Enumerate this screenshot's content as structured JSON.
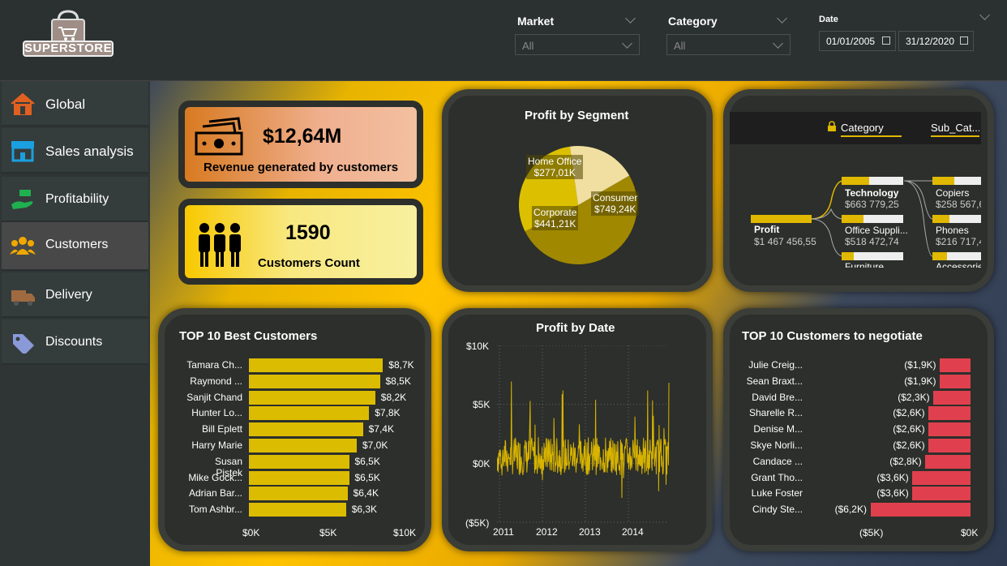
{
  "brand": {
    "logo_text": "SUPERSTORE",
    "accent": "#e1b800",
    "negative": "#e0404e"
  },
  "filters": {
    "market": {
      "label": "Market",
      "value": "All"
    },
    "category": {
      "label": "Category",
      "value": "All"
    },
    "date": {
      "label": "Date",
      "start": "01/01/2005",
      "end": "31/12/2020"
    }
  },
  "sidebar": {
    "items": [
      {
        "label": "Global",
        "icon": "home-icon"
      },
      {
        "label": "Sales analysis",
        "icon": "store-icon"
      },
      {
        "label": "Profitability",
        "icon": "money-hand-icon"
      },
      {
        "label": "Customers",
        "icon": "people-icon"
      },
      {
        "label": "Delivery",
        "icon": "truck-icon"
      },
      {
        "label": "Discounts",
        "icon": "tag-icon"
      }
    ]
  },
  "kpis": {
    "revenue": {
      "value": "$12,64M",
      "label": "Revenue generated by customers",
      "icon": "cash-icon"
    },
    "customers": {
      "value": "1590",
      "label": "Customers Count",
      "icon": "group-icon"
    }
  },
  "segment_chart": {
    "title": "Profit by Segment",
    "slices": [
      {
        "name": "Consumer",
        "value": 749.24,
        "label": "$749,24K",
        "color": "#a08800"
      },
      {
        "name": "Corporate",
        "value": 441.21,
        "label": "$441,21K",
        "color": "#dcc000"
      },
      {
        "name": "Home Office",
        "value": 277.01,
        "label": "$277,01K",
        "color": "#f0dfa0"
      }
    ]
  },
  "tree": {
    "header_category": "Category",
    "header_sub": "Sub_Cat...",
    "root": {
      "name": "Profit",
      "value": "$1 467 456,55"
    },
    "categories": [
      {
        "name": "Technology",
        "value": "$663 779,25",
        "fill": 0.45
      },
      {
        "name": "Office Suppli...",
        "value": "$518 472,74",
        "fill": 0.35
      },
      {
        "name": "Furniture",
        "value": "",
        "fill": 0.2
      }
    ],
    "subcategories": [
      {
        "name": "Copiers",
        "value": "$258 567,6",
        "fill": 0.45
      },
      {
        "name": "Phones",
        "value": "$216 717,4",
        "fill": 0.35
      },
      {
        "name": "Accessorie",
        "value": "",
        "fill": 0.3
      }
    ]
  },
  "best_customers": {
    "title": "TOP 10 Best Customers",
    "axis": [
      "$0K",
      "$5K",
      "$10K"
    ],
    "rows": [
      {
        "name": "Tamara Ch...",
        "value": 8.7,
        "label": "$8,7K"
      },
      {
        "name": "Raymond ...",
        "value": 8.5,
        "label": "$8,5K"
      },
      {
        "name": "Sanjit Chand",
        "value": 8.2,
        "label": "$8,2K"
      },
      {
        "name": "Hunter Lo...",
        "value": 7.8,
        "label": "$7,8K"
      },
      {
        "name": "Bill Eplett",
        "value": 7.4,
        "label": "$7,4K"
      },
      {
        "name": "Harry Marie",
        "value": 7.0,
        "label": "$7,0K"
      },
      {
        "name": "Susan Pistek",
        "value": 6.5,
        "label": "$6,5K"
      },
      {
        "name": "Mike Gock...",
        "value": 6.5,
        "label": "$6,5K"
      },
      {
        "name": "Adrian Bar...",
        "value": 6.4,
        "label": "$6,4K"
      },
      {
        "name": "Tom Ashbr...",
        "value": 6.3,
        "label": "$6,3K"
      }
    ]
  },
  "date_chart": {
    "title": "Profit by Date",
    "y_ticks": [
      "$10K",
      "$5K",
      "$0K",
      "($5K)"
    ],
    "x_ticks": [
      "2011",
      "2012",
      "2013",
      "2014"
    ]
  },
  "negotiate": {
    "title": "TOP 10 Customers to negotiate",
    "axis": [
      "($5K)",
      "$0K"
    ],
    "rows": [
      {
        "name": "Julie Creig...",
        "value": -1.9,
        "label": "($1,9K)"
      },
      {
        "name": "Sean Braxt...",
        "value": -1.9,
        "label": "($1,9K)"
      },
      {
        "name": "David Bre...",
        "value": -2.3,
        "label": "($2,3K)"
      },
      {
        "name": "Sharelle R...",
        "value": -2.6,
        "label": "($2,6K)"
      },
      {
        "name": "Denise M...",
        "value": -2.6,
        "label": "($2,6K)"
      },
      {
        "name": "Skye Norli...",
        "value": -2.6,
        "label": "($2,6K)"
      },
      {
        "name": "Candace ...",
        "value": -2.8,
        "label": "($2,8K)"
      },
      {
        "name": "Grant Tho...",
        "value": -3.6,
        "label": "($3,6K)"
      },
      {
        "name": "Luke Foster",
        "value": -3.6,
        "label": "($3,6K)"
      },
      {
        "name": "Cindy Ste...",
        "value": -6.2,
        "label": "($6,2K)"
      }
    ]
  },
  "chart_data": [
    {
      "type": "pie",
      "title": "Profit by Segment",
      "categories": [
        "Consumer",
        "Corporate",
        "Home Office"
      ],
      "values": [
        749.24,
        441.21,
        277.01
      ]
    },
    {
      "type": "bar",
      "title": "TOP 10 Best Customers",
      "categories": [
        "Tamara Ch...",
        "Raymond ...",
        "Sanjit Chand",
        "Hunter Lo...",
        "Bill Eplett",
        "Harry Marie",
        "Susan Pistek",
        "Mike Gock...",
        "Adrian Bar...",
        "Tom Ashbr..."
      ],
      "values": [
        8.7,
        8.5,
        8.2,
        7.8,
        7.4,
        7.0,
        6.5,
        6.5,
        6.4,
        6.3
      ],
      "xlim": [
        0,
        10
      ]
    },
    {
      "type": "bar",
      "title": "TOP 10 Customers to negotiate",
      "categories": [
        "Julie Creig...",
        "Sean Braxt...",
        "David Bre...",
        "Sharelle R...",
        "Denise M...",
        "Skye Norli...",
        "Candace ...",
        "Grant Tho...",
        "Luke Foster",
        "Cindy Ste..."
      ],
      "values": [
        -1.9,
        -1.9,
        -2.3,
        -2.6,
        -2.6,
        -2.6,
        -2.8,
        -3.6,
        -3.6,
        -6.2
      ],
      "xlim": [
        -6.2,
        0
      ]
    },
    {
      "type": "line",
      "title": "Profit by Date",
      "ylim": [
        -5,
        10
      ],
      "x_ticks": [
        "2011",
        "2012",
        "2013",
        "2014"
      ],
      "y_ticks": [
        "$10K",
        "$5K",
        "$0K",
        "($5K)"
      ]
    }
  ]
}
